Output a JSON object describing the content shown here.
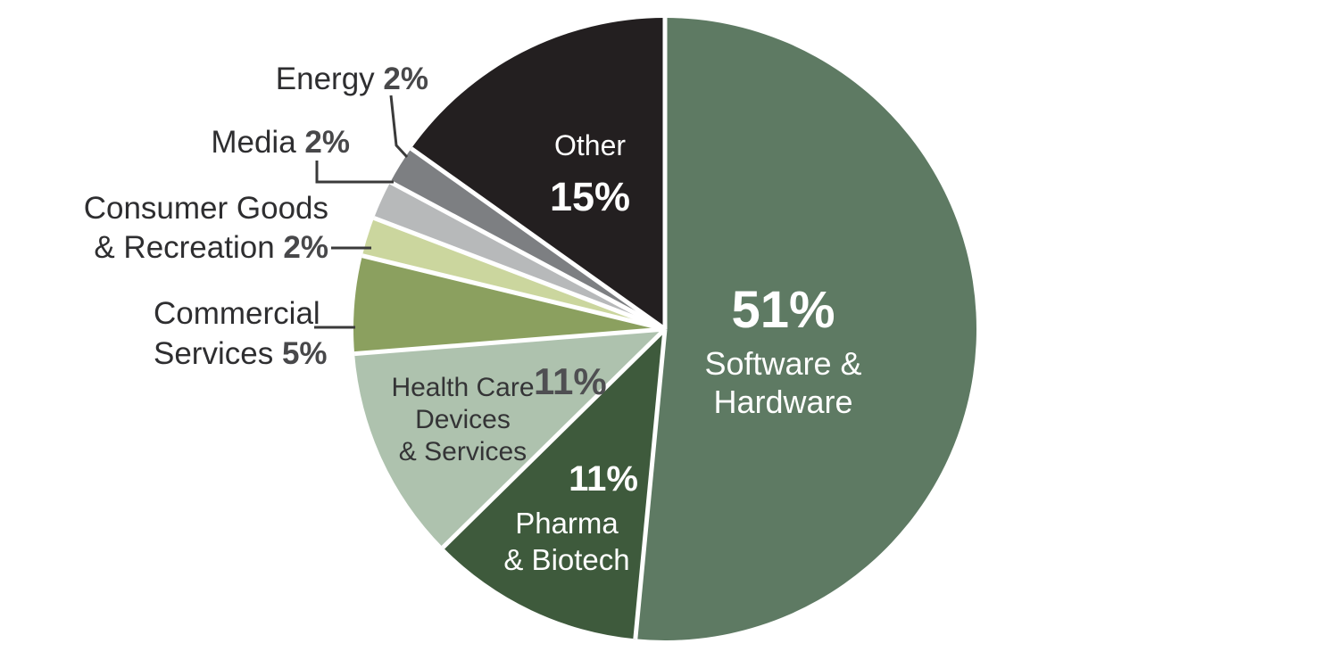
{
  "chart_data": {
    "type": "pie",
    "unit": "%",
    "start_angle": "12 o'clock, clockwise",
    "legend_position": "none",
    "labels_on_chart": true,
    "separator_color": "#ffffff",
    "segments": [
      {
        "label": "Software & Hardware",
        "value": 51,
        "color": "#5e7a63",
        "label_placement": "inside",
        "text_color": "#ffffff"
      },
      {
        "label": "Pharma & Biotech",
        "value": 11,
        "color": "#3e5a3c",
        "label_placement": "inside",
        "text_color": "#ffffff"
      },
      {
        "label": "Health Care Devices & Services",
        "value": 11,
        "color": "#aec2ae",
        "label_placement": "inside",
        "text_color": "#343436"
      },
      {
        "label": "Commercial Services",
        "value": 5,
        "color": "#8ba05f",
        "label_placement": "outside-left"
      },
      {
        "label": "Consumer Goods & Recreation",
        "value": 2,
        "color": "#cbd69e",
        "label_placement": "outside-left"
      },
      {
        "label": "Media",
        "value": 2,
        "color": "#b7b9ba",
        "label_placement": "outside-left"
      },
      {
        "label": "Energy",
        "value": 2,
        "color": "#7d7f82",
        "label_placement": "outside-left"
      },
      {
        "label": "Other",
        "value": 15,
        "color": "#231f20",
        "label_placement": "inside",
        "text_color": "#ffffff"
      }
    ]
  },
  "labels": {
    "energy": {
      "name": "Energy",
      "pct": "2%"
    },
    "media": {
      "name": "Media",
      "pct": "2%"
    },
    "consumer_goods": {
      "line1": "Consumer Goods",
      "line2": "& Recreation",
      "pct": "2%"
    },
    "commercial_services": {
      "line1": "Commercial",
      "line2": "Services",
      "pct": "5%"
    },
    "health_care": {
      "line1": "Health Care",
      "line2": "Devices",
      "line3": "& Services",
      "pct": "11%"
    },
    "pharma": {
      "pct": "11%",
      "line1": "Pharma",
      "line2": "& Biotech"
    },
    "other": {
      "name": "Other",
      "pct": "15%"
    },
    "software_hardware": {
      "pct": "51%",
      "line1": "Software &",
      "line2": "Hardware"
    }
  }
}
